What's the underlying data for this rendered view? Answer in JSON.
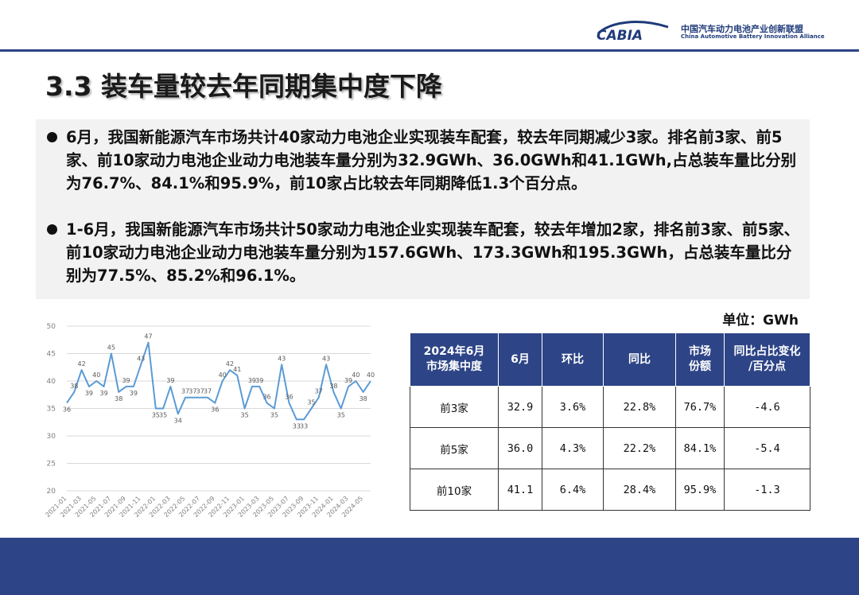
{
  "header": {
    "logo_text": "CABIA",
    "org_cn": "中国汽车动力电池产业创新联盟",
    "org_en": "China Automotive Battery Innovation Alliance",
    "brand_color": "#2d4486"
  },
  "title": "3.3 装车量较去年同期集中度下降",
  "bullets": [
    "6月，我国新能源汽车市场共计40家动力电池企业实现装车配套，较去年同期减少3家。排名前3家、前5家、前10家动力电池企业动力电池装车量分别为32.9GWh、36.0GWh和41.1GWh,占总装车量比分别为76.7%、84.1%和95.9%，前10家占比较去年同期降低1.3个百分点。",
    "1-6月，我国新能源汽车市场共计50家动力电池企业实现装车配套，较去年增加2家，排名前3家、前5家、前10家动力电池企业动力电池装车量分别为157.6GWh、173.3GWh和195.3GWh，占总装车量比分别为77.5%、85.2%和96.1%。"
  ],
  "unit": "单位：GWh",
  "chart_data": {
    "type": "line",
    "x": [
      "2021-01",
      "2021-02",
      "2021-03",
      "2021-04",
      "2021-05",
      "2021-06",
      "2021-07",
      "2021-08",
      "2021-09",
      "2021-10",
      "2021-11",
      "2021-12",
      "2022-01",
      "2022-02",
      "2022-03",
      "2022-04",
      "2022-05",
      "2022-06",
      "2022-07",
      "2022-08",
      "2022-09",
      "2022-10",
      "2022-11",
      "2022-12",
      "2023-01",
      "2023-02",
      "2023-03",
      "2023-04",
      "2023-05",
      "2023-06",
      "2023-07",
      "2023-08",
      "2023-09",
      "2023-10",
      "2023-11",
      "2023-12",
      "2024-01",
      "2024-02",
      "2024-03",
      "2024-04",
      "2024-05",
      "2024-06"
    ],
    "x_tick_labels": [
      "2021-01",
      "2021-03",
      "2021-05",
      "2021-07",
      "2021-09",
      "2021-11",
      "2022-01",
      "2022-03",
      "2022-05",
      "2022-07",
      "2022-09",
      "2022-11",
      "2023-01",
      "2023-03",
      "2023-05",
      "2023-07",
      "2023-09",
      "2023-11",
      "2024-01",
      "2024-03",
      "2024-05"
    ],
    "values": [
      36,
      38,
      42,
      39,
      40,
      39,
      45,
      38,
      39,
      39,
      43,
      47,
      35,
      35,
      39,
      34,
      37,
      37,
      37,
      37,
      36,
      40,
      42,
      41,
      35,
      39,
      39,
      36,
      35,
      43,
      36,
      33,
      33,
      35,
      37,
      43,
      38,
      35,
      39,
      40,
      38,
      40
    ],
    "point_labels": [
      "36",
      "38",
      "42",
      "39",
      "40",
      "39",
      "45",
      "38",
      "39",
      "39",
      "43",
      "47",
      "35",
      "35",
      "39",
      "34",
      "37",
      "37",
      "37",
      "37",
      "36",
      "40",
      "42",
      "41",
      "35",
      "39",
      "39",
      "36",
      "35",
      "43",
      "36",
      "33",
      "33",
      "35",
      "37",
      "43",
      "38",
      "35",
      "39",
      "40",
      "38",
      "40"
    ],
    "y_ticks": [
      "50",
      "45",
      "40",
      "35",
      "30",
      "25",
      "20"
    ],
    "ylim": [
      20,
      50
    ],
    "grid": true,
    "line_color": "#5b9bd5"
  },
  "table": {
    "headers": [
      "2024年6月\n市场集中度",
      "6月",
      "环比",
      "同比",
      "市场\n份额",
      "同比占比变化\n/百分点"
    ],
    "rows": [
      [
        "前3家",
        "32.9",
        "3.6%",
        "22.8%",
        "76.7%",
        "-4.6"
      ],
      [
        "前5家",
        "36.0",
        "4.3%",
        "22.2%",
        "84.1%",
        "-5.4"
      ],
      [
        "前10家",
        "41.1",
        "6.4%",
        "28.4%",
        "95.9%",
        "-1.3"
      ]
    ]
  }
}
